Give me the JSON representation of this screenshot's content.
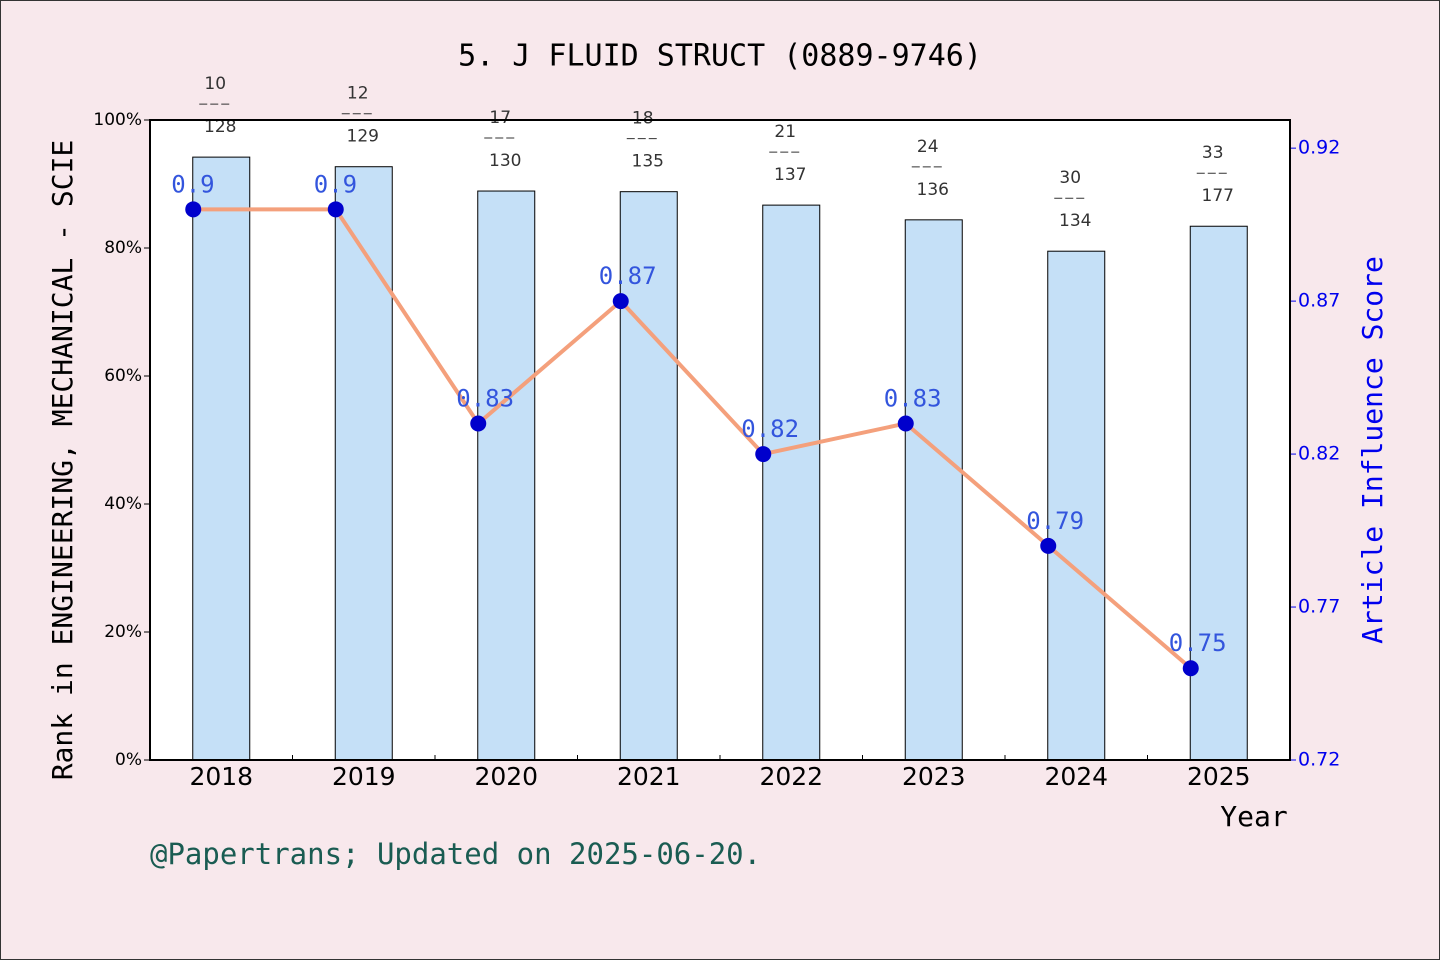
{
  "chart_data": {
    "type": "bar-line",
    "title": "5. J FLUID STRUCT (0889-9746)",
    "x_label": "Year",
    "y_label": "Rank in ENGINEERING, MECHANICAL - SCIE",
    "y2_label": "Article Influence Score",
    "footer": "@Papertrans; Updated on 2025-06-20.",
    "categories": [
      "2018",
      "2019",
      "2020",
      "2021",
      "2022",
      "2023",
      "2024",
      "2025"
    ],
    "series": [
      {
        "name": "Rank percentile",
        "color": "#c5e0f7",
        "values": [
          94.2,
          92.7,
          88.9,
          88.8,
          86.7,
          84.4,
          79.5,
          83.4
        ],
        "ranks": [
          10,
          12,
          17,
          18,
          21,
          24,
          30,
          33
        ],
        "totals": [
          128,
          129,
          130,
          135,
          137,
          136,
          134,
          177
        ]
      },
      {
        "name": "Article Influence Score",
        "axis": "y2",
        "color": "#f4a07c",
        "marker_color": "#0000cc",
        "values": [
          0.9,
          0.9,
          0.83,
          0.87,
          0.82,
          0.83,
          0.79,
          0.75
        ]
      }
    ],
    "ylim": [
      0,
      100
    ],
    "yticks": [
      {
        "value": 0,
        "label": "0%"
      },
      {
        "value": 20,
        "label": "20%"
      },
      {
        "value": 40,
        "label": "40%"
      },
      {
        "value": 60,
        "label": "60%"
      },
      {
        "value": 80,
        "label": "80%"
      },
      {
        "value": 100,
        "label": "100%"
      }
    ],
    "y2lim": [
      0.72,
      0.9292
    ],
    "y2ticks": [
      0.72,
      0.77,
      0.82,
      0.87,
      0.92
    ],
    "grid": false
  }
}
